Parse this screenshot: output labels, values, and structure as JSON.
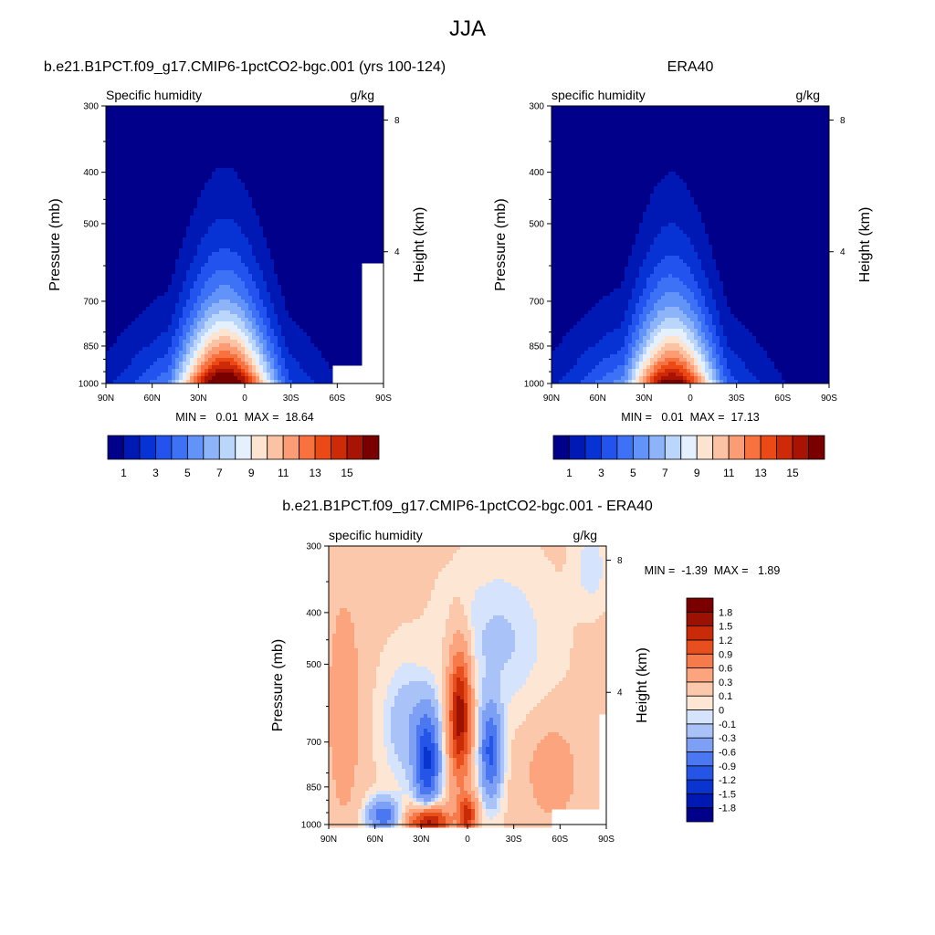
{
  "figure": {
    "title": "JJA"
  },
  "colors": {
    "ocean_white": "#ffffff"
  },
  "chart_data": [
    {
      "type": "heatmap",
      "title": "b.e21.B1PCT.f09_g17.CMIP6-1pctCO2-bgc.001 (yrs 100-124)",
      "subtitle_left": "Specific humidity",
      "subtitle_right": "g/kg",
      "ylabel": "Pressure (mb)",
      "y2label": "Height (km)",
      "xticks": [
        "90N",
        "60N",
        "30N",
        "0",
        "30S",
        "60S",
        "90S"
      ],
      "xticks_values": [
        90,
        60,
        30,
        0,
        -30,
        -60,
        -90
      ],
      "yticks": [
        "300",
        "400",
        "500",
        "700",
        "850",
        "1000"
      ],
      "yticks_values": [
        300,
        400,
        500,
        700,
        850,
        1000
      ],
      "y2ticks": [
        "8",
        "4"
      ],
      "y2ticks_values": [
        8,
        4
      ],
      "xlim": [
        90,
        -90
      ],
      "ylim": [
        1000,
        300
      ],
      "y_scale": "log",
      "stats": "MIN =   0.01  MAX =  18.64",
      "colorbar": {
        "orientation": "horizontal",
        "tick_labels": [
          "1",
          "3",
          "5",
          "7",
          "9",
          "11",
          "13",
          "15"
        ],
        "colors": [
          "#00008b",
          "#0018b4",
          "#0733d4",
          "#2253ee",
          "#3e72f6",
          "#6193f8",
          "#8db4f9",
          "#bad6fb",
          "#e5f0fe",
          "#fde4d0",
          "#fcc2a4",
          "#fb9c74",
          "#f8723f",
          "#eb4a16",
          "#cf2a07",
          "#a91303",
          "#7a0000"
        ]
      },
      "field": {
        "lat_max": 13,
        "lat_halfwidth_surface": 26,
        "peak": 18.64,
        "min": 0.01
      }
    },
    {
      "type": "heatmap",
      "title": "ERA40",
      "subtitle_left": "specific humidity",
      "subtitle_right": "g/kg",
      "ylabel": "Pressure (mb)",
      "y2label": "Height (km)",
      "xticks": [
        "90N",
        "60N",
        "30N",
        "0",
        "30S",
        "60S",
        "90S"
      ],
      "xticks_values": [
        90,
        60,
        30,
        0,
        -30,
        -60,
        -90
      ],
      "yticks": [
        "300",
        "400",
        "500",
        "700",
        "850",
        "1000"
      ],
      "yticks_values": [
        300,
        400,
        500,
        700,
        850,
        1000
      ],
      "y2ticks": [
        "8",
        "4"
      ],
      "y2ticks_values": [
        8,
        4
      ],
      "xlim": [
        90,
        -90
      ],
      "ylim": [
        1000,
        300
      ],
      "y_scale": "log",
      "stats": "MIN =   0.01  MAX =  17.13",
      "colorbar": {
        "orientation": "horizontal",
        "tick_labels": [
          "1",
          "3",
          "5",
          "7",
          "9",
          "11",
          "13",
          "15"
        ],
        "colors": [
          "#00008b",
          "#0018b4",
          "#0733d4",
          "#2253ee",
          "#3e72f6",
          "#6193f8",
          "#8db4f9",
          "#bad6fb",
          "#e5f0fe",
          "#fde4d0",
          "#fcc2a4",
          "#fb9c74",
          "#f8723f",
          "#eb4a16",
          "#cf2a07",
          "#a91303",
          "#7a0000"
        ]
      },
      "field": {
        "lat_max": 12,
        "lat_halfwidth_surface": 24,
        "peak": 17.13,
        "min": 0.01
      }
    },
    {
      "type": "heatmap",
      "title": "b.e21.B1PCT.f09_g17.CMIP6-1pctCO2-bgc.001 - ERA40",
      "subtitle_left": "specific humidity",
      "subtitle_right": "g/kg",
      "ylabel": "Pressure (mb)",
      "y2label": "Height (km)",
      "xticks": [
        "90N",
        "60N",
        "30N",
        "0",
        "30S",
        "60S",
        "90S"
      ],
      "xticks_values": [
        90,
        60,
        30,
        0,
        -30,
        -60,
        -90
      ],
      "yticks": [
        "300",
        "400",
        "500",
        "700",
        "850",
        "1000"
      ],
      "yticks_values": [
        300,
        400,
        500,
        700,
        850,
        1000
      ],
      "y2ticks": [
        "8",
        "4"
      ],
      "y2ticks_values": [
        8,
        4
      ],
      "xlim": [
        90,
        -90
      ],
      "ylim": [
        1000,
        300
      ],
      "y_scale": "log",
      "stats": "MIN =  -1.39  MAX =   1.89",
      "colorbar": {
        "orientation": "vertical",
        "tick_labels": [
          "-1.8",
          "-1.5",
          "-1.2",
          "-0.9",
          "-0.6",
          "-0.3",
          "-0.1",
          "0",
          "0.1",
          "0.3",
          "0.6",
          "0.9",
          "1.2",
          "1.5",
          "1.8"
        ],
        "colors": [
          "#00008b",
          "#0019b0",
          "#0a34d0",
          "#2555e6",
          "#4b78f0",
          "#7ea0f4",
          "#a9c3f8",
          "#d5e4fc",
          "#fde6d4",
          "#fcc8ac",
          "#fba47e",
          "#f67a4a",
          "#e74f1e",
          "#c92b08",
          "#9d1102",
          "#7a0000"
        ]
      }
    }
  ]
}
